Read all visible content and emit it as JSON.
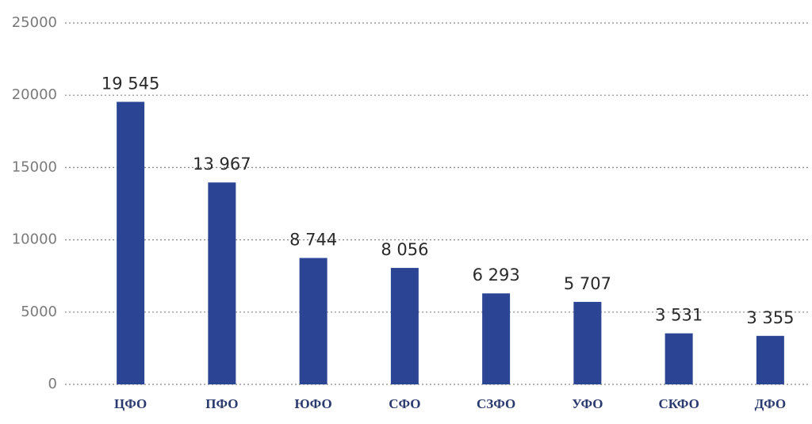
{
  "chart_data": {
    "type": "bar",
    "categories": [
      "ЦФО",
      "ПФО",
      "ЮФО",
      "СФО",
      "СЗФО",
      "УФО",
      "СКФО",
      "ДФО"
    ],
    "values": [
      19545,
      13967,
      8744,
      8056,
      6293,
      5707,
      3531,
      3355
    ],
    "value_labels": [
      "19 545",
      "13 967",
      "8 744",
      "8 056",
      "6 293",
      "5 707",
      "3 531",
      "3 355"
    ],
    "color": "#2b4594",
    "ylim": [
      0,
      25000
    ],
    "yticks": [
      0,
      5000,
      10000,
      15000,
      20000,
      25000
    ],
    "grid": true
  }
}
